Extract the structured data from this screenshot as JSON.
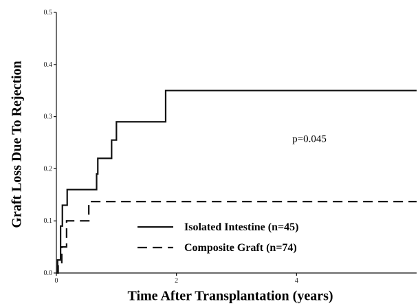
{
  "chart_data": {
    "type": "step",
    "xlabel": "Time After Transplantation (years)",
    "ylabel": "Graft Loss Due To Rejection",
    "annotation": "p=0.045",
    "xlim": [
      0,
      6
    ],
    "ylim": [
      0,
      0.5
    ],
    "xticks": [
      0,
      2,
      4
    ],
    "yticks": [
      {
        "value": 0,
        "label": "0.0"
      },
      0.1,
      0.2,
      0.3,
      0.4,
      0.5
    ],
    "legend": "lower center",
    "series": [
      {
        "name": "Isolated Intestine (n=45)",
        "color": "#111111",
        "dash": "solid",
        "x": [
          0,
          0.02,
          0.07,
          0.1,
          0.18,
          0.67,
          0.69,
          0.92,
          1.0,
          1.82,
          6
        ],
        "values": [
          0,
          0.025,
          0.09,
          0.13,
          0.16,
          0.19,
          0.22,
          0.255,
          0.29,
          0.35,
          0.35
        ]
      },
      {
        "name": "Composite Graft (n=74)",
        "color": "#111111",
        "dash": "dashed",
        "x": [
          0,
          0.03,
          0.09,
          0.17,
          0.54,
          6
        ],
        "values": [
          0,
          0.02,
          0.05,
          0.1,
          0.137,
          0.137
        ]
      }
    ]
  }
}
